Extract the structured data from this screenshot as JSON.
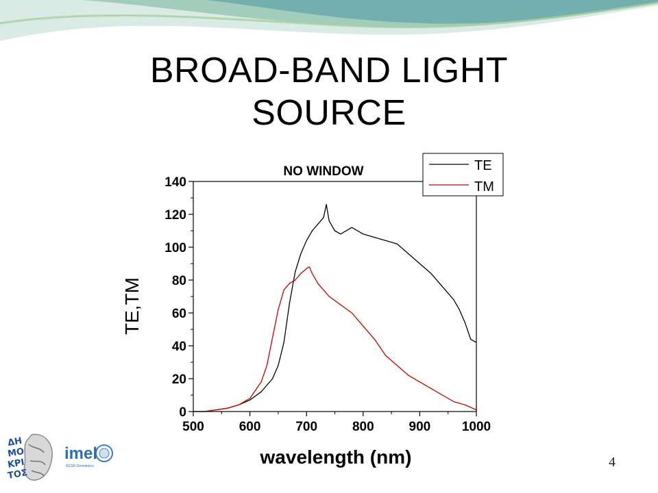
{
  "slide": {
    "title_line1": "BROAD-BAND LIGHT",
    "title_line2": "SOURCE",
    "page_number": "4"
  },
  "logos": {
    "demokritos_text": "ΔΗ ΜΟ ΚΡΙ ΤΟΣ",
    "imel_text": "imel",
    "imel_subtext": "NCSR Demokritos"
  },
  "colors": {
    "te": "#000000",
    "tm": "#cc0000",
    "wave_teal": "#5fa3a8",
    "wave_green": "#a9cfa0"
  },
  "chart_data": {
    "type": "line",
    "title": "NO WINDOW",
    "xlabel": "wavelength (nm)",
    "ylabel": "TE,TM",
    "xlim": [
      500,
      1000
    ],
    "ylim": [
      0,
      140
    ],
    "xticks": [
      500,
      600,
      700,
      800,
      900,
      1000
    ],
    "yticks": [
      0,
      20,
      40,
      60,
      80,
      100,
      120,
      140
    ],
    "legend_position": "top-right",
    "series": [
      {
        "name": "TE",
        "color": "#000000",
        "x": [
          500,
          520,
          540,
          560,
          580,
          600,
          620,
          640,
          650,
          660,
          670,
          680,
          690,
          700,
          710,
          720,
          730,
          735,
          740,
          750,
          760,
          780,
          800,
          820,
          840,
          860,
          880,
          900,
          920,
          940,
          960,
          970,
          980,
          990,
          1000
        ],
        "y": [
          0,
          0,
          1,
          2,
          4,
          7,
          12,
          20,
          28,
          42,
          66,
          85,
          96,
          104,
          110,
          114,
          118,
          126,
          116,
          110,
          108,
          112,
          108,
          106,
          104,
          102,
          96,
          90,
          84,
          76,
          68,
          62,
          54,
          44,
          42
        ]
      },
      {
        "name": "TM",
        "color": "#cc0000",
        "x": [
          500,
          520,
          540,
          560,
          580,
          600,
          620,
          630,
          640,
          650,
          660,
          670,
          680,
          690,
          700,
          705,
          710,
          720,
          740,
          760,
          780,
          800,
          820,
          840,
          860,
          880,
          900,
          920,
          940,
          960,
          980,
          1000
        ],
        "y": [
          0,
          0,
          1,
          2,
          4,
          8,
          18,
          28,
          45,
          62,
          74,
          78,
          80,
          84,
          87,
          88,
          84,
          78,
          70,
          65,
          60,
          52,
          44,
          34,
          28,
          22,
          18,
          14,
          10,
          6,
          4,
          1
        ]
      }
    ]
  }
}
